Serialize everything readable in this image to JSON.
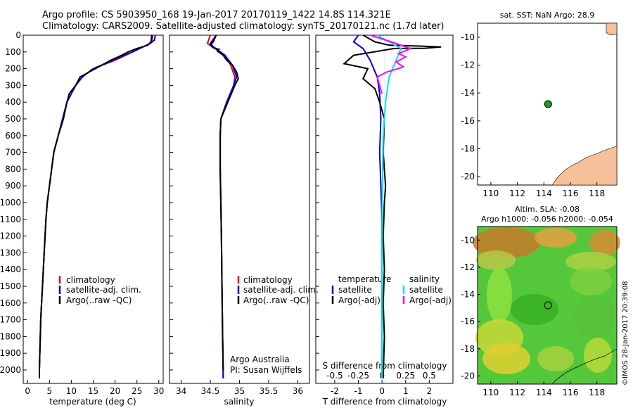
{
  "header": {
    "line1": "Argo profile: CS 5903950_168 19-Jan-2017 20170119_1422 14.8S 114.321E",
    "line2": "Climatology: CARS2009. Satellite-adjusted climatology: synTS_20170121.nc (1.7d later)"
  },
  "side_text": "©IMOS 28-Jan-2017 20:39:08",
  "colors": {
    "climatology": "#e8001c",
    "satellite": "#0000e0",
    "argo": "#000000",
    "sal_satellite": "#00e6e6",
    "sal_argo": "#ff00ff",
    "land": "#f5c09a",
    "float": "#1ca01c"
  },
  "chart_data": [
    {
      "type": "line",
      "xlabel": "temperature (deg C)",
      "ylabel": "",
      "xlim": [
        -1,
        31
      ],
      "ylim": [
        2080,
        0
      ],
      "xticks": [
        0,
        5,
        10,
        15,
        20,
        25,
        30
      ],
      "yticks": [
        0,
        100,
        200,
        300,
        400,
        500,
        600,
        700,
        800,
        900,
        1000,
        1100,
        1200,
        1300,
        1400,
        1500,
        1600,
        1700,
        1800,
        1900,
        2000
      ],
      "legend": [
        "climatology",
        "satellite-adj. clim.",
        "Argo(..raw -QC)"
      ],
      "series": [
        {
          "name": "climatology",
          "color": "#e8001c",
          "points": [
            [
              28.6,
              0
            ],
            [
              28.5,
              30
            ],
            [
              28,
              50
            ],
            [
              24,
              100
            ],
            [
              20,
              150
            ],
            [
              15,
              200
            ],
            [
              12.5,
              250
            ],
            [
              11,
              300
            ],
            [
              10,
              350
            ],
            [
              9,
              400
            ],
            [
              8,
              500
            ],
            [
              7,
              600
            ],
            [
              6,
              700
            ],
            [
              5.5,
              800
            ],
            [
              5,
              900
            ],
            [
              4.5,
              1000
            ],
            [
              4.2,
              1100
            ],
            [
              4,
              1200
            ],
            [
              3.8,
              1300
            ],
            [
              3.6,
              1400
            ],
            [
              3.4,
              1500
            ],
            [
              3.2,
              1600
            ],
            [
              3,
              1700
            ],
            [
              2.9,
              1800
            ],
            [
              2.8,
              1900
            ],
            [
              2.7,
              2000
            ],
            [
              2.7,
              2050
            ]
          ]
        },
        {
          "name": "satellite-adj. clim.",
          "color": "#0000e0",
          "points": [
            [
              29.2,
              0
            ],
            [
              29,
              30
            ],
            [
              28,
              50
            ],
            [
              24,
              100
            ],
            [
              19.5,
              150
            ],
            [
              15,
              200
            ],
            [
              12.5,
              250
            ],
            [
              11,
              300
            ],
            [
              10,
              350
            ],
            [
              9,
              400
            ],
            [
              8,
              500
            ],
            [
              7,
              600
            ],
            [
              6,
              700
            ],
            [
              5.5,
              800
            ],
            [
              5,
              900
            ],
            [
              4.5,
              1000
            ],
            [
              4.2,
              1100
            ],
            [
              4,
              1200
            ],
            [
              3.8,
              1300
            ],
            [
              3.6,
              1400
            ],
            [
              3.4,
              1500
            ],
            [
              3.2,
              1600
            ],
            [
              3,
              1700
            ],
            [
              2.9,
              1800
            ],
            [
              2.8,
              1900
            ],
            [
              2.7,
              2000
            ],
            [
              2.7,
              2050
            ]
          ]
        },
        {
          "name": "Argo(..raw -QC)",
          "color": "#000000",
          "points": [
            [
              28.4,
              0
            ],
            [
              28.2,
              40
            ],
            [
              27.5,
              60
            ],
            [
              25,
              80
            ],
            [
              23,
              100
            ],
            [
              21.5,
              120
            ],
            [
              19,
              150
            ],
            [
              15.5,
              200
            ],
            [
              12,
              250
            ],
            [
              11,
              300
            ],
            [
              9.5,
              350
            ],
            [
              9,
              400
            ],
            [
              8.2,
              500
            ],
            [
              7,
              600
            ],
            [
              6,
              700
            ],
            [
              5.5,
              800
            ],
            [
              5,
              900
            ],
            [
              4.5,
              1000
            ],
            [
              4.2,
              1100
            ],
            [
              4,
              1200
            ],
            [
              3.8,
              1300
            ],
            [
              3.6,
              1400
            ],
            [
              3.4,
              1500
            ],
            [
              3.2,
              1600
            ],
            [
              3,
              1700
            ],
            [
              2.9,
              1800
            ],
            [
              2.8,
              1900
            ],
            [
              2.7,
              2000
            ],
            [
              2.7,
              2050
            ]
          ]
        }
      ]
    },
    {
      "type": "line",
      "xlabel": "salinity",
      "xlim": [
        33.8,
        36.2
      ],
      "ylim": [
        2080,
        0
      ],
      "xticks": [
        34,
        34.5,
        35,
        35.5,
        36
      ],
      "legend": [
        "climatology",
        "satellite-adj. clim.",
        "Argo(..raw -QC)"
      ],
      "annotation": [
        "Argo Australia",
        "PI: Susan Wijffels"
      ],
      "series": [
        {
          "name": "climatology",
          "color": "#e8001c",
          "points": [
            [
              34.5,
              0
            ],
            [
              34.45,
              50
            ],
            [
              34.6,
              80
            ],
            [
              34.75,
              120
            ],
            [
              34.85,
              180
            ],
            [
              34.92,
              250
            ],
            [
              34.9,
              300
            ],
            [
              34.78,
              400
            ],
            [
              34.68,
              500
            ],
            [
              34.67,
              600
            ],
            [
              34.67,
              800
            ],
            [
              34.68,
              1000
            ],
            [
              34.69,
              1200
            ],
            [
              34.7,
              1500
            ],
            [
              34.71,
              1800
            ],
            [
              34.72,
              2000
            ],
            [
              34.72,
              2050
            ]
          ]
        },
        {
          "name": "satellite-adj. clim.",
          "color": "#0000e0",
          "points": [
            [
              34.6,
              0
            ],
            [
              34.5,
              50
            ],
            [
              34.58,
              80
            ],
            [
              34.75,
              120
            ],
            [
              34.88,
              180
            ],
            [
              34.95,
              250
            ],
            [
              34.9,
              300
            ],
            [
              34.78,
              400
            ],
            [
              34.68,
              500
            ],
            [
              34.67,
              600
            ],
            [
              34.67,
              800
            ],
            [
              34.68,
              1000
            ],
            [
              34.69,
              1200
            ],
            [
              34.7,
              1500
            ],
            [
              34.71,
              1800
            ],
            [
              34.72,
              2000
            ],
            [
              34.72,
              2050
            ]
          ]
        },
        {
          "name": "Argo(..raw -QC)",
          "color": "#000000",
          "points": [
            [
              34.6,
              0
            ],
            [
              34.55,
              40
            ],
            [
              34.5,
              60
            ],
            [
              34.55,
              75
            ],
            [
              34.65,
              85
            ],
            [
              34.62,
              95
            ],
            [
              34.72,
              120
            ],
            [
              34.78,
              150
            ],
            [
              34.88,
              180
            ],
            [
              34.95,
              220
            ],
            [
              34.98,
              260
            ],
            [
              34.92,
              300
            ],
            [
              34.8,
              400
            ],
            [
              34.68,
              500
            ],
            [
              34.67,
              600
            ],
            [
              34.67,
              800
            ],
            [
              34.68,
              1000
            ],
            [
              34.69,
              1200
            ],
            [
              34.7,
              1500
            ],
            [
              34.71,
              1800
            ],
            [
              34.72,
              2000
            ]
          ]
        }
      ]
    },
    {
      "type": "line",
      "xlabel": "T difference from climatology",
      "xlabel_top": "S difference from climatology",
      "xlim": [
        -2.8,
        3
      ],
      "ylim": [
        2080,
        0
      ],
      "xticks": [
        -2,
        -1,
        0,
        1,
        2
      ],
      "xticks_top_labels": [
        "-0.5",
        "-0.25",
        "0",
        "0.25",
        "0.5"
      ],
      "xticks_top_positions": [
        -2,
        -1,
        0,
        1,
        2
      ],
      "legend_left_title": "temperature",
      "legend_left": [
        "satellite",
        "Argo(-adj)"
      ],
      "legend_right_title": "salinity",
      "legend_right": [
        "satellite",
        "Argo(-adj)"
      ],
      "series": [
        {
          "name": "satellite",
          "color": "#0000e0",
          "points": [
            [
              -1,
              0
            ],
            [
              -1.2,
              40
            ],
            [
              -0.8,
              80
            ],
            [
              -0.5,
              150
            ],
            [
              -0.2,
              250
            ],
            [
              -0.1,
              350
            ],
            [
              -0.05,
              500
            ],
            [
              -0.1,
              700
            ],
            [
              -0.05,
              900
            ],
            [
              0,
              1100
            ],
            [
              0,
              1500
            ],
            [
              0,
              2050
            ]
          ]
        },
        {
          "name": "Argo(-adj)",
          "color": "#000000",
          "points": [
            [
              -0.8,
              0
            ],
            [
              -0.3,
              40
            ],
            [
              0.3,
              60
            ],
            [
              1.6,
              65
            ],
            [
              2.5,
              70
            ],
            [
              1.8,
              78
            ],
            [
              0.5,
              80
            ],
            [
              -1.2,
              120
            ],
            [
              -1.6,
              170
            ],
            [
              -0.6,
              200
            ],
            [
              -0.8,
              260
            ],
            [
              -0.3,
              320
            ],
            [
              -0.1,
              400
            ],
            [
              0.1,
              500
            ],
            [
              0.05,
              700
            ],
            [
              0.15,
              900
            ],
            [
              0.1,
              1000
            ],
            [
              0.05,
              1200
            ],
            [
              0.1,
              1400
            ],
            [
              0.05,
              1600
            ],
            [
              0.1,
              1800
            ],
            [
              0.05,
              2050
            ]
          ]
        },
        {
          "name": "salinity satellite",
          "color": "#00e6e6",
          "points": [
            [
              -0.2,
              0
            ],
            [
              0.3,
              40
            ],
            [
              0.8,
              80
            ],
            [
              0.6,
              150
            ],
            [
              0.3,
              250
            ],
            [
              0.15,
              400
            ],
            [
              0.05,
              600
            ],
            [
              0.02,
              900
            ],
            [
              0,
              1200
            ],
            [
              0,
              1600
            ],
            [
              0,
              2050
            ]
          ]
        },
        {
          "name": "salinity Argo(-adj)",
          "color": "#ff00ff",
          "points": [
            [
              -0.5,
              0
            ],
            [
              0.4,
              40
            ],
            [
              1.2,
              80
            ],
            [
              0.7,
              110
            ],
            [
              1.0,
              130
            ],
            [
              0.6,
              160
            ],
            [
              0.9,
              190
            ],
            [
              0.2,
              220
            ],
            [
              -0.2,
              250
            ],
            [
              -0.1,
              300
            ],
            [
              0,
              350
            ]
          ]
        }
      ]
    },
    {
      "type": "map",
      "title": "sat. SST: NaN Argo: 28.9",
      "xlim": [
        109,
        119.5
      ],
      "ylim": [
        -20.6,
        -9
      ],
      "xticks": [
        110,
        112,
        114,
        116,
        118
      ],
      "yticks": [
        -10,
        -12,
        -14,
        -16,
        -18,
        -20
      ],
      "float_position": [
        114.32,
        -14.8
      ]
    },
    {
      "type": "heatmap",
      "title_line1": "Altim. SLA: -0.08",
      "title_line2": "Argo h1000: -0.056 h2000: -0.054",
      "xlim": [
        109,
        119.5
      ],
      "ylim": [
        -20.6,
        -9
      ],
      "xticks": [
        110,
        112,
        114,
        116,
        118
      ],
      "yticks": [
        -10,
        -12,
        -14,
        -16,
        -18,
        -20
      ],
      "float_position": [
        114.32,
        -14.8
      ]
    }
  ]
}
